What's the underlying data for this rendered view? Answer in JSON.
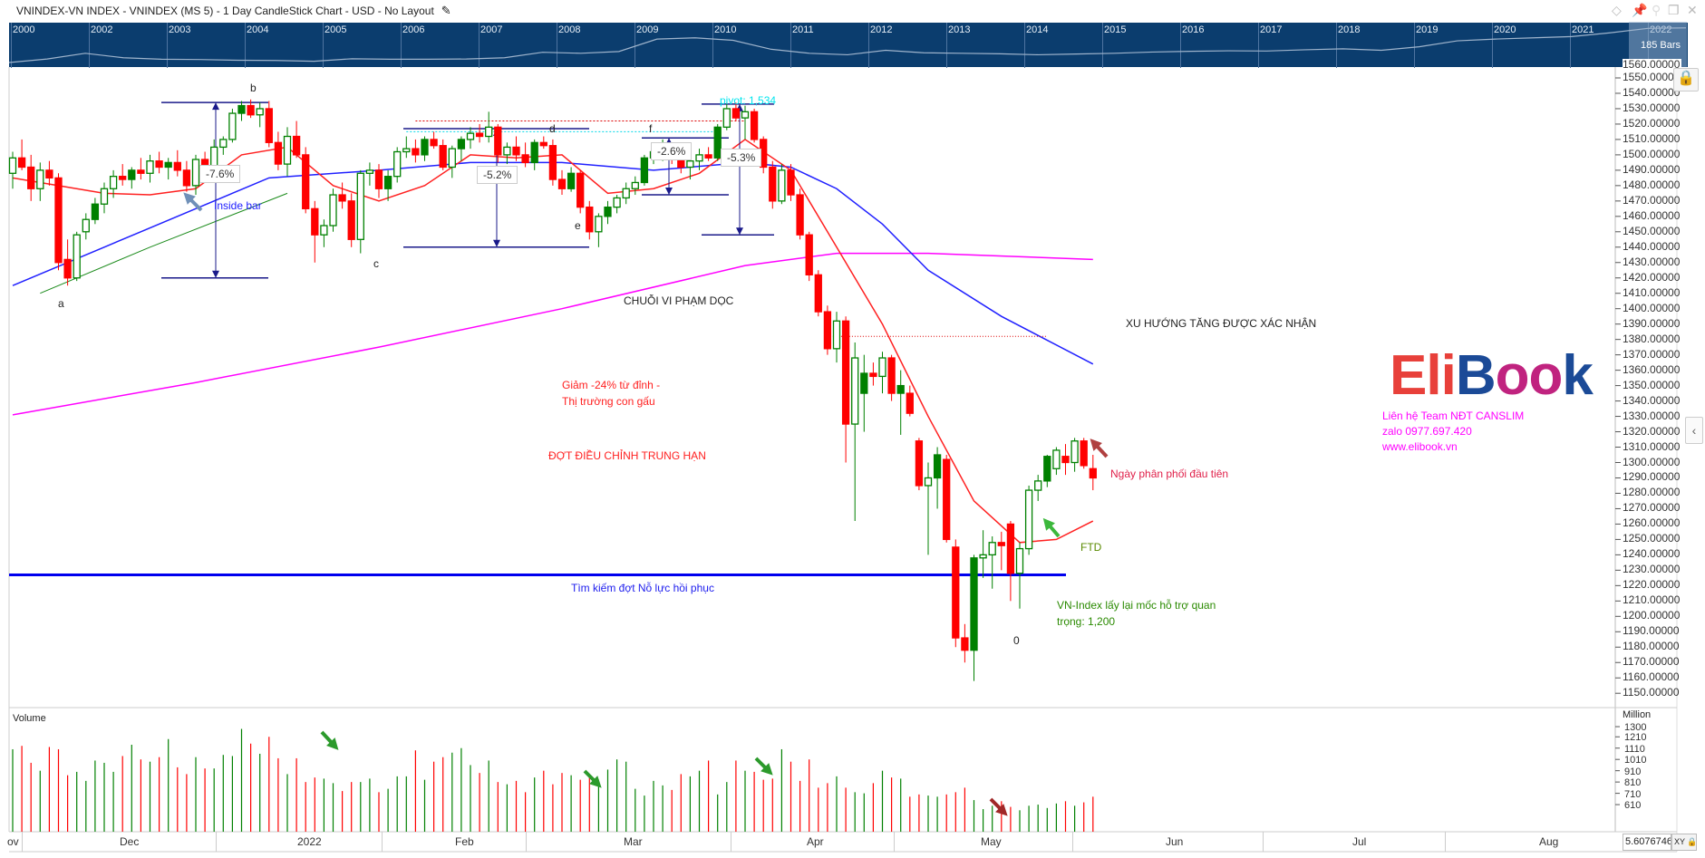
{
  "title": "VNINDEX-VN INDEX - VNINDEX (MS 5) - 1 Day CandleStick Chart - USD - No Layout",
  "navigator": {
    "years": [
      "2000",
      "2002",
      "2003",
      "2004",
      "2005",
      "2006",
      "2007",
      "2008",
      "2009",
      "2010",
      "2011",
      "2012",
      "2013",
      "2014",
      "2015",
      "2016",
      "2017",
      "2018",
      "2019",
      "2020",
      "2021",
      "2022"
    ],
    "bars_label": "185 Bars",
    "series": [
      110,
      250,
      480,
      300,
      240,
      230,
      200,
      190,
      160,
      260,
      240,
      240,
      250,
      300,
      520,
      480,
      550,
      1050,
      1100,
      1000,
      640,
      480,
      420,
      600,
      500,
      480,
      460,
      420,
      450,
      480,
      530,
      560,
      580,
      570,
      620,
      660,
      600,
      740,
      980,
      1050,
      1100,
      1150,
      1300,
      1480,
      1500
    ]
  },
  "price_axis": {
    "labels": [
      "1560.00000",
      "1550.00000",
      "1540.00000",
      "1530.00000",
      "1520.00000",
      "1510.00000",
      "1500.00000",
      "1490.00000",
      "1480.00000",
      "1470.00000",
      "1460.00000",
      "1450.00000",
      "1440.00000",
      "1430.00000",
      "1420.00000",
      "1410.00000",
      "1400.00000",
      "1390.00000",
      "1380.00000",
      "1370.00000",
      "1360.00000",
      "1350.00000",
      "1340.00000",
      "1330.00000",
      "1320.00000",
      "1310.00000",
      "1300.00000",
      "1290.00000",
      "1280.00000",
      "1270.00000",
      "1260.00000",
      "1250.00000",
      "1240.00000",
      "1230.00000",
      "1220.00000",
      "1210.00000",
      "1200.00000",
      "1190.00000",
      "1180.00000",
      "1170.00000",
      "1160.00000",
      "1150.00000"
    ]
  },
  "volume": {
    "title": "Volume",
    "unit": "Million",
    "ticks": [
      "1300",
      "1210",
      "1110",
      "1010",
      "910",
      "810",
      "710",
      "610"
    ]
  },
  "date_axis": {
    "labels": [
      "ov",
      "Dec",
      "2022",
      "Feb",
      "Mar",
      "Apr",
      "May",
      "Jun",
      "Jul",
      "Aug"
    ]
  },
  "value_box": "5.6076746",
  "xy_label": "XY",
  "colors": {
    "up": "#008000",
    "down": "#ff0000",
    "ma_short": "#ff2020",
    "ma_mid": "#2020ff",
    "ma_long": "#ff00ff",
    "support": "#0000ee",
    "nav_bg": "#0b3d6e"
  },
  "chart_data": {
    "type": "candlestick",
    "title": "VNINDEX 1 Day",
    "ylim": [
      1150,
      1560
    ],
    "ohlc": [
      [
        1488,
        1502,
        1478,
        1498
      ],
      [
        1498,
        1510,
        1490,
        1492
      ],
      [
        1492,
        1500,
        1470,
        1478
      ],
      [
        1478,
        1495,
        1470,
        1490
      ],
      [
        1490,
        1496,
        1480,
        1485
      ],
      [
        1485,
        1488,
        1425,
        1430
      ],
      [
        1432,
        1445,
        1415,
        1420
      ],
      [
        1420,
        1450,
        1418,
        1448
      ],
      [
        1450,
        1462,
        1445,
        1458
      ],
      [
        1458,
        1472,
        1455,
        1468
      ],
      [
        1468,
        1482,
        1462,
        1478
      ],
      [
        1478,
        1490,
        1472,
        1486
      ],
      [
        1486,
        1494,
        1480,
        1484
      ],
      [
        1484,
        1492,
        1478,
        1490
      ],
      [
        1490,
        1498,
        1484,
        1488
      ],
      [
        1488,
        1500,
        1482,
        1496
      ],
      [
        1496,
        1502,
        1488,
        1492
      ],
      [
        1492,
        1498,
        1484,
        1495
      ],
      [
        1495,
        1503,
        1486,
        1490
      ],
      [
        1490,
        1496,
        1476,
        1480
      ],
      [
        1480,
        1500,
        1474,
        1497
      ],
      [
        1497,
        1502,
        1488,
        1490
      ],
      [
        1490,
        1510,
        1488,
        1505
      ],
      [
        1505,
        1512,
        1500,
        1510
      ],
      [
        1510,
        1530,
        1508,
        1527
      ],
      [
        1527,
        1535,
        1522,
        1532
      ],
      [
        1532,
        1536,
        1524,
        1526
      ],
      [
        1526,
        1534,
        1518,
        1530
      ],
      [
        1530,
        1535,
        1505,
        1508
      ],
      [
        1508,
        1515,
        1490,
        1494
      ],
      [
        1494,
        1518,
        1486,
        1512
      ],
      [
        1512,
        1522,
        1498,
        1500
      ],
      [
        1500,
        1505,
        1462,
        1465
      ],
      [
        1465,
        1470,
        1430,
        1448
      ],
      [
        1448,
        1458,
        1440,
        1454
      ],
      [
        1454,
        1478,
        1450,
        1474
      ],
      [
        1474,
        1482,
        1465,
        1470
      ],
      [
        1470,
        1475,
        1440,
        1445
      ],
      [
        1445,
        1490,
        1436,
        1488
      ],
      [
        1488,
        1495,
        1480,
        1490
      ],
      [
        1490,
        1494,
        1472,
        1478
      ],
      [
        1478,
        1490,
        1470,
        1486
      ],
      [
        1486,
        1505,
        1482,
        1502
      ],
      [
        1502,
        1512,
        1498,
        1504
      ],
      [
        1504,
        1510,
        1495,
        1500
      ],
      [
        1500,
        1512,
        1496,
        1510
      ],
      [
        1510,
        1515,
        1504,
        1506
      ],
      [
        1506,
        1510,
        1490,
        1492
      ],
      [
        1492,
        1506,
        1485,
        1504
      ],
      [
        1504,
        1512,
        1496,
        1510
      ],
      [
        1510,
        1518,
        1504,
        1514
      ],
      [
        1514,
        1520,
        1508,
        1512
      ],
      [
        1512,
        1528,
        1508,
        1518
      ],
      [
        1518,
        1520,
        1495,
        1500
      ],
      [
        1500,
        1508,
        1494,
        1505
      ],
      [
        1505,
        1512,
        1496,
        1500
      ],
      [
        1500,
        1508,
        1492,
        1495
      ],
      [
        1495,
        1510,
        1490,
        1508
      ],
      [
        1508,
        1512,
        1504,
        1506
      ],
      [
        1506,
        1510,
        1480,
        1484
      ],
      [
        1484,
        1490,
        1474,
        1478
      ],
      [
        1478,
        1492,
        1476,
        1488
      ],
      [
        1488,
        1490,
        1462,
        1466
      ],
      [
        1466,
        1470,
        1445,
        1450
      ],
      [
        1450,
        1462,
        1440,
        1460
      ],
      [
        1460,
        1470,
        1455,
        1466
      ],
      [
        1466,
        1474,
        1462,
        1472
      ],
      [
        1472,
        1482,
        1468,
        1478
      ],
      [
        1478,
        1486,
        1474,
        1482
      ],
      [
        1482,
        1500,
        1480,
        1498
      ],
      [
        1498,
        1506,
        1494,
        1502
      ],
      [
        1502,
        1510,
        1496,
        1504
      ],
      [
        1504,
        1508,
        1494,
        1498
      ],
      [
        1498,
        1502,
        1488,
        1492
      ],
      [
        1492,
        1500,
        1484,
        1496
      ],
      [
        1496,
        1504,
        1490,
        1500
      ],
      [
        1500,
        1505,
        1496,
        1498
      ],
      [
        1498,
        1520,
        1496,
        1518
      ],
      [
        1518,
        1534,
        1516,
        1530
      ],
      [
        1530,
        1534,
        1522,
        1524
      ],
      [
        1524,
        1532,
        1510,
        1528
      ],
      [
        1528,
        1530,
        1508,
        1510
      ],
      [
        1510,
        1512,
        1488,
        1492
      ],
      [
        1492,
        1496,
        1465,
        1470
      ],
      [
        1470,
        1494,
        1468,
        1490
      ],
      [
        1490,
        1494,
        1470,
        1474
      ],
      [
        1474,
        1478,
        1445,
        1448
      ],
      [
        1448,
        1450,
        1418,
        1422
      ],
      [
        1422,
        1425,
        1395,
        1398
      ],
      [
        1398,
        1402,
        1370,
        1374
      ],
      [
        1374,
        1398,
        1365,
        1392
      ],
      [
        1392,
        1395,
        1300,
        1325
      ],
      [
        1325,
        1378,
        1262,
        1368
      ],
      [
        1345,
        1370,
        1320,
        1358
      ],
      [
        1358,
        1365,
        1350,
        1356
      ],
      [
        1356,
        1372,
        1345,
        1368
      ],
      [
        1368,
        1370,
        1340,
        1345
      ],
      [
        1345,
        1360,
        1318,
        1350
      ],
      [
        1345,
        1350,
        1330,
        1332
      ],
      [
        1314,
        1316,
        1282,
        1285
      ],
      [
        1285,
        1300,
        1240,
        1290
      ],
      [
        1290,
        1310,
        1270,
        1305
      ],
      [
        1302,
        1305,
        1248,
        1250
      ],
      [
        1245,
        1250,
        1180,
        1186
      ],
      [
        1186,
        1195,
        1170,
        1178
      ],
      [
        1178,
        1240,
        1158,
        1238
      ],
      [
        1238,
        1256,
        1225,
        1240
      ],
      [
        1240,
        1252,
        1218,
        1248
      ],
      [
        1248,
        1255,
        1230,
        1246
      ],
      [
        1260,
        1262,
        1210,
        1228
      ],
      [
        1228,
        1248,
        1205,
        1244
      ],
      [
        1244,
        1285,
        1240,
        1282
      ],
      [
        1282,
        1292,
        1275,
        1288
      ],
      [
        1288,
        1305,
        1284,
        1304
      ],
      [
        1296,
        1310,
        1292,
        1308
      ],
      [
        1304,
        1312,
        1292,
        1300
      ],
      [
        1300,
        1316,
        1294,
        1314
      ],
      [
        1314,
        1316,
        1296,
        1298
      ],
      [
        1296,
        1305,
        1282,
        1290
      ]
    ],
    "volumes": [
      1100,
      1130,
      980,
      910,
      1120,
      1100,
      870,
      900,
      820,
      1000,
      980,
      900,
      1040,
      1140,
      1010,
      990,
      1030,
      1190,
      940,
      880,
      1030,
      930,
      930,
      1050,
      1040,
      1280,
      1150,
      1060,
      1210,
      1020,
      880,
      1020,
      810,
      850,
      840,
      800,
      730,
      810,
      810,
      840,
      720,
      750,
      860,
      860,
      1090,
      830,
      990,
      1030,
      1070,
      1110,
      960,
      890,
      1000,
      810,
      790,
      820,
      720,
      850,
      910,
      790,
      890,
      870,
      830,
      850,
      830,
      920,
      1010,
      990,
      750,
      690,
      820,
      780,
      740,
      880,
      860,
      910,
      1000,
      700,
      810,
      1000,
      910,
      900,
      830,
      840,
      1100,
      990,
      820,
      1010,
      760,
      800,
      860,
      760,
      720,
      710,
      800,
      910,
      850,
      840,
      680,
      700,
      690,
      680,
      700,
      720,
      760,
      650,
      570,
      600,
      640,
      590,
      560,
      600,
      610,
      580,
      620,
      640,
      600,
      630,
      680,
      640,
      530
    ],
    "ma_short": [
      [
        0,
        1485
      ],
      [
        5,
        1480
      ],
      [
        10,
        1475
      ],
      [
        15,
        1474
      ],
      [
        20,
        1478
      ],
      [
        25,
        1500
      ],
      [
        30,
        1505
      ],
      [
        35,
        1480
      ],
      [
        40,
        1470
      ],
      [
        45,
        1480
      ],
      [
        50,
        1500
      ],
      [
        55,
        1498
      ],
      [
        60,
        1500
      ],
      [
        65,
        1475
      ],
      [
        70,
        1478
      ],
      [
        75,
        1488
      ],
      [
        80,
        1510
      ],
      [
        85,
        1490
      ],
      [
        90,
        1440
      ],
      [
        95,
        1390
      ],
      [
        100,
        1330
      ],
      [
        105,
        1275
      ],
      [
        110,
        1248
      ],
      [
        114,
        1250
      ],
      [
        118,
        1262
      ]
    ],
    "ma_mid": [
      [
        0,
        1415
      ],
      [
        10,
        1440
      ],
      [
        20,
        1465
      ],
      [
        28,
        1485
      ],
      [
        40,
        1490
      ],
      [
        50,
        1495
      ],
      [
        60,
        1495
      ],
      [
        70,
        1490
      ],
      [
        80,
        1495
      ],
      [
        85,
        1492
      ],
      [
        90,
        1478
      ],
      [
        95,
        1455
      ],
      [
        100,
        1425
      ],
      [
        108,
        1395
      ],
      [
        118,
        1364
      ]
    ],
    "ma_long": [
      [
        0,
        1331
      ],
      [
        20,
        1352
      ],
      [
        40,
        1375
      ],
      [
        60,
        1400
      ],
      [
        80,
        1428
      ],
      [
        90,
        1436
      ],
      [
        100,
        1436
      ],
      [
        118,
        1432
      ]
    ],
    "ma_green": [
      [
        3,
        1410
      ],
      [
        15,
        1440
      ],
      [
        30,
        1475
      ]
    ],
    "support_level": 1227
  },
  "annotations": {
    "a": "a",
    "b": "b",
    "c": "c",
    "d": "d",
    "e": "e",
    "f": "f",
    "zero": "0",
    "inside_bar": "Inside bar",
    "pct_b": "-7.6%",
    "pct_e": "-5.2%",
    "pct_f": "-2.6%",
    "pct_pivot": "-5.3%",
    "pivot": "pivot: 1,534",
    "chuoi": "CHUỖI VI PHẠM DỌC",
    "xu_huong": "XU HƯỚNG TĂNG ĐƯỢC XÁC NHẬN",
    "giam1": "Giảm -24% từ đỉnh -",
    "giam2": "Thị trường con gấu",
    "dot_dieu_chinh": "ĐỢT ĐIỀU CHỈNH TRUNG HẠN",
    "tim_kiem": "Tìm kiếm đợt Nỗ lực hồi phục",
    "ngay_phan_phoi": "Ngày phân phối đầu tiên",
    "ftd": "FTD",
    "vn1": "VN-Index lấy lại mốc hỗ trợ quan",
    "vn2": "trọng: 1,200"
  },
  "logo": {
    "eli": "Eli",
    "b": "B",
    "oo": "oo",
    "k": "k"
  },
  "contact": [
    "Liên hệ Team NĐT CANSLIM",
    "zalo 0977.697.420",
    "www.elibook.vn"
  ]
}
